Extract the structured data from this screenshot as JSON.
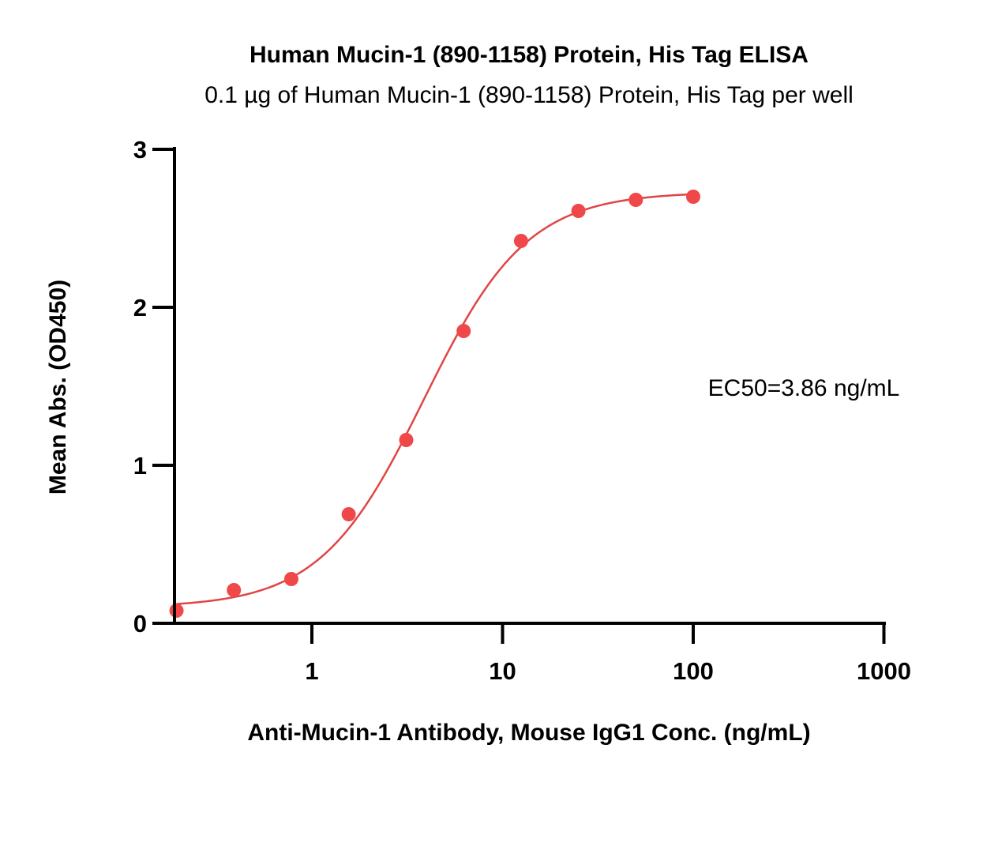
{
  "chart_data": {
    "type": "scatter",
    "title": "Human Mucin-1 (890-1158) Protein, His Tag ELISA",
    "subtitle": "0.1 µg of Human Mucin-1 (890-1158) Protein, His Tag per well",
    "xlabel": "Anti-Mucin-1 Antibody, Mouse IgG1 Conc. (ng/mL)",
    "ylabel": "Mean Abs. (OD450)",
    "x_scale": "log",
    "xlim": [
      0.18,
      1000
    ],
    "ylim": [
      0,
      3
    ],
    "x_ticks": [
      1,
      10,
      100,
      1000
    ],
    "x_tick_labels": [
      "1",
      "10",
      "100",
      "1000"
    ],
    "y_ticks": [
      0,
      1,
      2,
      3
    ],
    "y_tick_labels": [
      "0",
      "1",
      "2",
      "3"
    ],
    "grid": false,
    "series": [
      {
        "color": "#f04848",
        "x": [
          0.195,
          0.39,
          0.78,
          1.56,
          3.125,
          6.25,
          12.5,
          25,
          50,
          100
        ],
        "y": [
          0.08,
          0.21,
          0.28,
          0.69,
          1.16,
          1.85,
          2.42,
          2.61,
          2.68,
          2.7
        ]
      }
    ],
    "fit_curve": {
      "model": "4PL",
      "bottom": 0.1,
      "top": 2.73,
      "ec50": 3.86,
      "hill": 1.6,
      "color": "#e04545"
    },
    "annotations": [
      "EC50=3.86 ng/mL"
    ]
  }
}
